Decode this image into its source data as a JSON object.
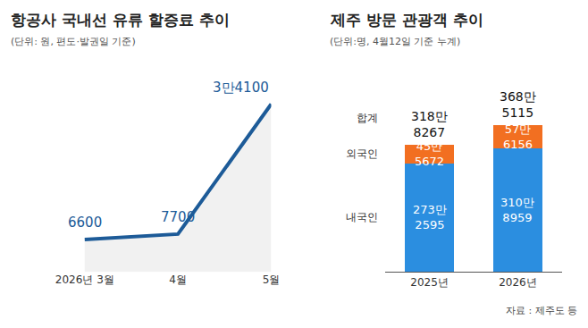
{
  "chart_data": [
    {
      "type": "line",
      "title": "항공사 국내선 유류 할증료 추이",
      "subtitle": "(단위: 원, 편도·발권일 기준)",
      "categories": [
        "2026년 3월",
        "4월",
        "5월"
      ],
      "values": [
        6600,
        7700,
        34100
      ],
      "value_labels": [
        "6600",
        "7700",
        "3만4100"
      ],
      "color": "#1d5b98",
      "ylim": [
        0,
        38000
      ],
      "data_labels": true,
      "tick_labels": "x",
      "grid": false
    },
    {
      "type": "bar",
      "title": "제주 방문 관광객 추이",
      "subtitle": "(단위:명, 4월12일 기준 누계)",
      "categories": [
        "2025년",
        "2026년"
      ],
      "stacked": true,
      "series": [
        {
          "name": "내국인",
          "color": "#2b8ee0",
          "values": [
            2732595,
            3108959
          ],
          "value_labels": [
            "273만 2595",
            "310만 8959"
          ]
        },
        {
          "name": "외국인",
          "color": "#f26f21",
          "values": [
            455672,
            576156
          ],
          "value_labels": [
            "45만 5672",
            "57만 6156"
          ]
        }
      ],
      "totals": {
        "name": "합계",
        "values": [
          3188267,
          3685115
        ],
        "value_labels": [
          "318만 8267",
          "368만 5115"
        ]
      },
      "ylim": [
        0,
        4700000
      ],
      "data_labels": true,
      "tick_labels": "x",
      "grid": false,
      "source": "자료 : 제주도 등"
    }
  ]
}
